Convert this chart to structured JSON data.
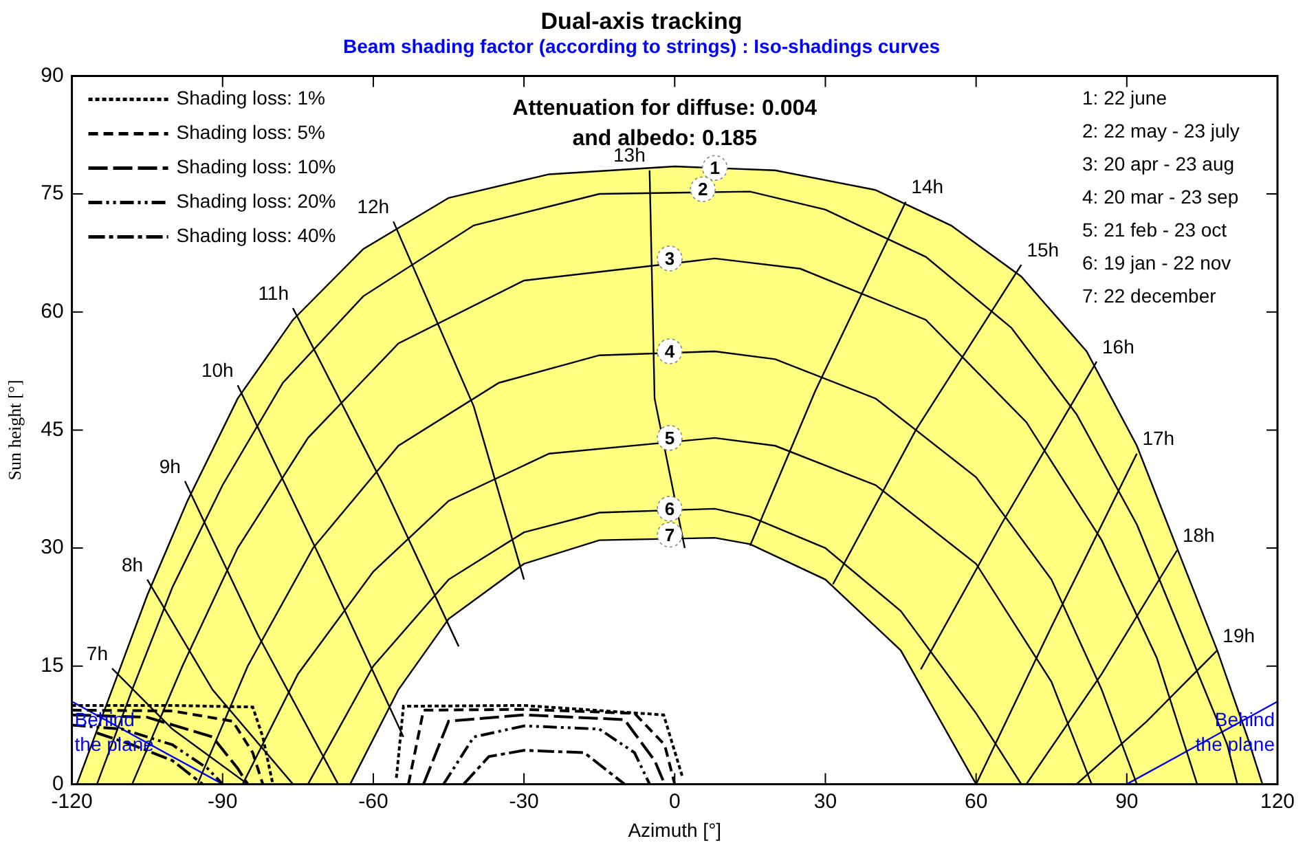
{
  "chart_data": {
    "type": "line",
    "title": "Dual-axis tracking",
    "subtitle": "Beam shading factor (according to strings) : Iso-shadings curves",
    "xlabel": "Azimuth [°]",
    "ylabel": "Sun height [°]",
    "xlim": [
      -120,
      120
    ],
    "xticks": [
      -120,
      -90,
      -60,
      -30,
      0,
      30,
      60,
      90,
      120
    ],
    "ylim": [
      0,
      90
    ],
    "yticks": [
      0,
      15,
      30,
      45,
      60,
      75,
      90
    ],
    "grid": false,
    "legend": "top left",
    "marker": "none",
    "series": [
      {
        "type": "area",
        "color": "#ffff80",
        "x": [
          -119,
          -112,
          -105,
          -97,
          -87,
          -76,
          -62,
          -45,
          -25,
          0,
          20,
          40,
          55,
          69,
          82,
          92,
          100,
          108,
          114,
          117
        ],
        "values": [
          0,
          12,
          24,
          36,
          49,
          59,
          68,
          74.5,
          77.5,
          78.5,
          78,
          75.5,
          71,
          64.5,
          55,
          43,
          30,
          17,
          6,
          0
        ]
      },
      {
        "color": "#000000",
        "x": [
          -115,
          -108,
          -100,
          -90,
          -78,
          -62,
          -40,
          -15,
          15,
          30,
          50,
          67,
          80,
          92,
          101,
          110,
          112
        ],
        "values": [
          0,
          12,
          25,
          38,
          51,
          62,
          71,
          75,
          75.3,
          73,
          67,
          58,
          47,
          33,
          19,
          5,
          0
        ]
      },
      {
        "color": "#000000",
        "x": [
          -108,
          -98,
          -87,
          -73,
          -55,
          -30,
          8,
          25,
          50,
          70,
          85,
          96,
          104
        ],
        "values": [
          0,
          15,
          30,
          44,
          56,
          64,
          66.8,
          65.5,
          59,
          46,
          31,
          16,
          0
        ]
      },
      {
        "color": "#000000",
        "x": [
          -95,
          -85,
          -72,
          -55,
          -35,
          -15,
          8,
          20,
          40,
          60,
          75,
          85,
          92
        ],
        "values": [
          0,
          15,
          30,
          43,
          51,
          54.5,
          55,
          54,
          49,
          39,
          26,
          12,
          0
        ]
      },
      {
        "color": "#000000",
        "x": [
          -86,
          -75,
          -60,
          -45,
          -25,
          8,
          20,
          40,
          60,
          75,
          83
        ],
        "values": [
          0,
          14,
          27,
          36,
          42,
          44,
          43,
          38,
          28,
          13,
          0
        ]
      },
      {
        "color": "#000000",
        "x": [
          -73,
          -60,
          -45,
          -30,
          -15,
          8,
          15,
          30,
          45,
          60,
          69
        ],
        "values": [
          0,
          15,
          26,
          32,
          34.5,
          35,
          34,
          30,
          22,
          9,
          0
        ]
      },
      {
        "type": "area",
        "color": "#ffffff",
        "x": [
          -64.6,
          -55,
          -45,
          -30,
          -15,
          8,
          15,
          30,
          45,
          60
        ],
        "values": [
          0,
          12,
          21,
          28,
          31,
          31.3,
          30.5,
          26,
          17,
          0
        ]
      },
      {
        "color": "#000000",
        "x": [
          -112,
          -100,
          -85
        ],
        "values": [
          14.7,
          7,
          0
        ]
      },
      {
        "color": "#000000",
        "x": [
          -105,
          -92,
          -76
        ],
        "values": [
          26,
          12,
          0
        ]
      },
      {
        "color": "#000000",
        "x": [
          -97.5,
          -83,
          -67
        ],
        "values": [
          38.5,
          19,
          0
        ]
      },
      {
        "color": "#000000",
        "x": [
          -87,
          -70,
          -54
        ],
        "values": [
          50.7,
          28,
          6
        ]
      },
      {
        "color": "#000000",
        "x": [
          -76,
          -58,
          -43
        ],
        "values": [
          60.5,
          38,
          17.5
        ]
      },
      {
        "color": "#000000",
        "x": [
          -56,
          -40,
          -30
        ],
        "values": [
          71.5,
          48,
          26
        ]
      },
      {
        "color": "#000000",
        "x": [
          -5,
          -4,
          2
        ],
        "values": [
          78,
          49,
          30
        ]
      },
      {
        "color": "#000000",
        "x": [
          46,
          28,
          15
        ],
        "values": [
          74,
          50,
          30.3
        ]
      },
      {
        "color": "#000000",
        "x": [
          69,
          48,
          31.5
        ],
        "values": [
          66,
          45,
          25.4
        ]
      },
      {
        "color": "#000000",
        "x": [
          84,
          65,
          49
        ],
        "values": [
          53.7,
          33,
          14.6
        ]
      },
      {
        "color": "#000000",
        "x": [
          92,
          75,
          60
        ],
        "values": [
          42,
          20,
          0
        ]
      },
      {
        "color": "#000000",
        "x": [
          100,
          85,
          70
        ],
        "values": [
          29.7,
          14,
          0
        ]
      },
      {
        "color": "#000000",
        "x": [
          108,
          94,
          80
        ],
        "values": [
          17,
          8,
          0
        ]
      },
      {
        "name": "Shading loss: 1%",
        "color": "#000000",
        "line_style": "dotted",
        "x": [
          -120,
          -100,
          -84,
          -82,
          -80
        ],
        "values": [
          10,
          10,
          9.8,
          6,
          0
        ]
      },
      {
        "name": "Shading loss: 5%",
        "color": "#000000",
        "line_style": "dashed",
        "x": [
          -120,
          -100,
          -88,
          -84,
          -82
        ],
        "values": [
          9.4,
          9.3,
          8,
          4,
          0
        ]
      },
      {
        "name": "Shading loss: 10%",
        "color": "#000000",
        "line_style": "longdash",
        "x": [
          -120,
          -105,
          -92,
          -87,
          -85
        ],
        "values": [
          8.8,
          8.5,
          6,
          2,
          0
        ]
      },
      {
        "name": "Shading loss: 20%",
        "color": "#000000",
        "line_style": "dashdotdot",
        "x": [
          -120,
          -110,
          -100,
          -93,
          -90
        ],
        "values": [
          7.5,
          7,
          5,
          2,
          0
        ]
      },
      {
        "name": "Shading loss: 40%",
        "color": "#000000",
        "line_style": "dashdot",
        "x": [
          -115,
          -108,
          -100,
          -96,
          -94
        ],
        "values": [
          6.5,
          5,
          3,
          1,
          0
        ]
      },
      {
        "color": "#000000",
        "line_style": "dotted",
        "x": [
          -55.4,
          -54,
          -30,
          -2.2,
          1.6
        ],
        "values": [
          0.8,
          9.9,
          10,
          8.8,
          0.8
        ]
      },
      {
        "color": "#000000",
        "line_style": "dashed",
        "x": [
          -53,
          -50,
          -30,
          -8,
          -2,
          0
        ],
        "values": [
          0,
          9.4,
          9.5,
          9,
          5,
          0
        ]
      },
      {
        "color": "#000000",
        "line_style": "longdash",
        "x": [
          -50,
          -45,
          -30,
          -10,
          -4,
          -2
        ],
        "values": [
          0,
          8,
          8.8,
          8.2,
          3,
          0
        ]
      },
      {
        "color": "#000000",
        "line_style": "dashdotdot",
        "x": [
          -46,
          -40,
          -30,
          -15,
          -8,
          -5
        ],
        "values": [
          0,
          6,
          7.4,
          7,
          4,
          0
        ]
      },
      {
        "color": "#000000",
        "line_style": "dashdot",
        "x": [
          -42,
          -37,
          -30,
          -18,
          -13,
          -10
        ],
        "values": [
          0,
          3.5,
          4.3,
          4,
          1.5,
          0
        ]
      },
      {
        "color": "#0000ff",
        "x": [
          -120,
          -90
        ],
        "values": [
          10.5,
          0
        ]
      },
      {
        "color": "#0000ff",
        "x": [
          90,
          120
        ],
        "values": [
          0,
          10.5
        ]
      }
    ],
    "annotations": [
      "Attenuation for diffuse: 0.004\nand albedo: 0.185",
      "1: 22 june",
      "2: 22 may - 23 july",
      "3: 20 apr - 23 aug",
      "4: 20 mar - 23 sep",
      "5: 21 feb - 23 oct",
      "6: 19 jan - 22 nov",
      "7: 22 december",
      "Behind\nthe plane",
      "Behind\nthe plane",
      {
        "text": "7h",
        "x": -112,
        "y": 14.7
      },
      {
        "text": "8h",
        "x": -105,
        "y": 26
      },
      {
        "text": "9h",
        "x": -97.5,
        "y": 38.5
      },
      {
        "text": "10h",
        "x": -87,
        "y": 50.7
      },
      {
        "text": "11h",
        "x": -76,
        "y": 60.5
      },
      {
        "text": "12h",
        "x": -56,
        "y": 71.5
      },
      {
        "text": "13h",
        "x": -5,
        "y": 78
      },
      {
        "text": "14h",
        "x": 46,
        "y": 74
      },
      {
        "text": "15h",
        "x": 69,
        "y": 66
      },
      {
        "text": "16h",
        "x": 84,
        "y": 53.7
      },
      {
        "text": "17h",
        "x": 92,
        "y": 42
      },
      {
        "text": "18h",
        "x": 100,
        "y": 29.7
      },
      {
        "text": "19h",
        "x": 108,
        "y": 17
      },
      {
        "text": "1",
        "x": 8,
        "y": 78.3
      },
      {
        "text": "2",
        "x": 5.6,
        "y": 75.6
      },
      {
        "text": "3",
        "x": -1,
        "y": 66.8
      },
      {
        "text": "4",
        "x": -1,
        "y": 55
      },
      {
        "text": "5",
        "x": -1,
        "y": 44
      },
      {
        "text": "6",
        "x": -1,
        "y": 35
      },
      {
        "text": "7",
        "x": -1,
        "y": 31.7
      }
    ]
  }
}
